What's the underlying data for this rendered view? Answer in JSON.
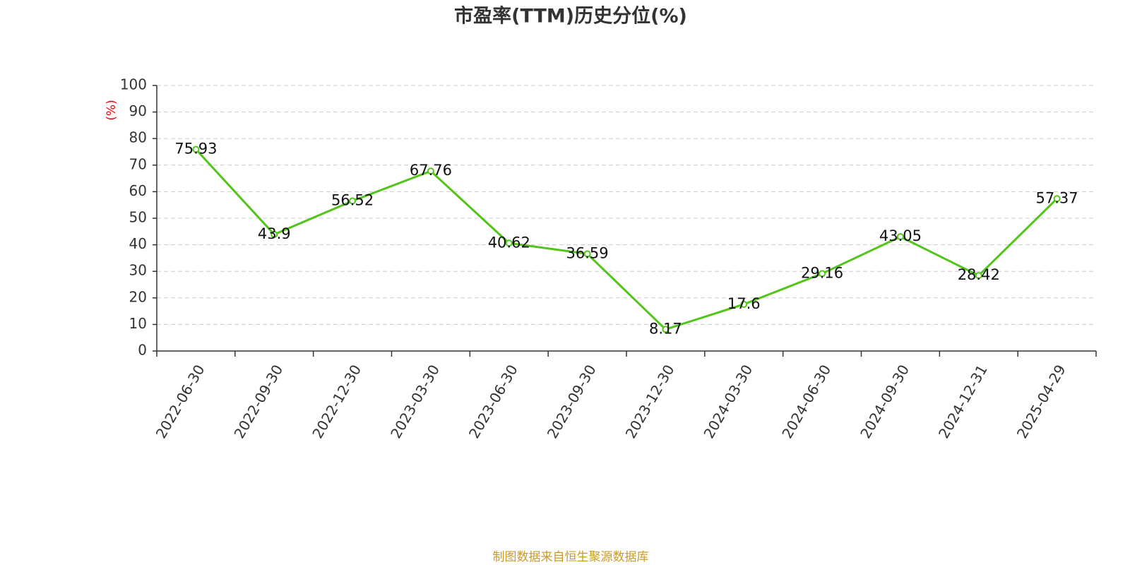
{
  "chart_data": {
    "type": "line",
    "title": "市盈率(TTM)历史分位(%)",
    "y_label": "(%)",
    "categories": [
      "2022-06-30",
      "2022-09-30",
      "2022-12-30",
      "2023-03-30",
      "2023-06-30",
      "2023-09-30",
      "2023-12-30",
      "2024-03-30",
      "2024-06-30",
      "2024-09-30",
      "2024-12-31",
      "2025-04-29"
    ],
    "values": [
      75.93,
      43.9,
      56.52,
      67.76,
      40.62,
      36.59,
      8.17,
      17.6,
      29.16,
      43.05,
      28.42,
      57.37
    ],
    "color": "#52c41a",
    "ylim": [
      0,
      100
    ],
    "yticks": [
      0,
      10,
      20,
      30,
      40,
      50,
      60,
      70,
      80,
      90,
      100
    ],
    "grid": true,
    "source": "制图数据来自恒生聚源数据库"
  }
}
